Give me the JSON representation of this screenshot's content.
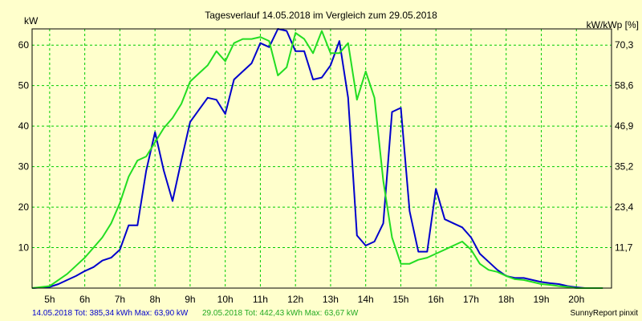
{
  "chart_data": {
    "type": "line",
    "title": "Tagesverlauf 14.05.2018 im Vergleich zum 29.05.2018",
    "ylabel_left": "kW",
    "ylabel_right": "kW/kWp [%]",
    "ylim": [
      0,
      64
    ],
    "xlim": [
      4.5,
      21.0
    ],
    "yticks_left": [
      "10",
      "20",
      "30",
      "40",
      "50",
      "60"
    ],
    "yticks_left_values": [
      10,
      20,
      30,
      40,
      50,
      60
    ],
    "yticks_right": [
      "11,7",
      "23,4",
      "35,2",
      "46,9",
      "58,6",
      "70,3"
    ],
    "xticks": [
      "5h",
      "6h",
      "7h",
      "8h",
      "9h",
      "10h",
      "11h",
      "12h",
      "13h",
      "14h",
      "15h",
      "16h",
      "17h",
      "18h",
      "19h",
      "20h"
    ],
    "xticks_values": [
      5,
      6,
      7,
      8,
      9,
      10,
      11,
      12,
      13,
      14,
      15,
      16,
      17,
      18,
      19,
      20
    ],
    "grid": true,
    "colors": {
      "background": "#ffffcc",
      "grid": "#00cc00",
      "axes": "#000000"
    },
    "series": [
      {
        "name": "14.05.2018",
        "color": "#0000cc",
        "x": [
          4.5,
          5.0,
          5.25,
          5.5,
          5.75,
          6.0,
          6.25,
          6.5,
          6.75,
          7.0,
          7.25,
          7.5,
          7.75,
          8.0,
          8.25,
          8.5,
          8.75,
          9.0,
          9.25,
          9.5,
          9.75,
          10.0,
          10.25,
          10.5,
          10.75,
          11.0,
          11.25,
          11.5,
          11.75,
          12.0,
          12.25,
          12.5,
          12.75,
          13.0,
          13.25,
          13.5,
          13.75,
          14.0,
          14.25,
          14.5,
          14.75,
          15.0,
          15.25,
          15.5,
          15.75,
          16.0,
          16.25,
          16.5,
          16.75,
          17.0,
          17.25,
          17.5,
          17.75,
          18.0,
          18.25,
          18.5,
          18.75,
          19.0,
          19.25,
          19.5,
          19.75,
          20.0,
          20.25,
          20.5,
          20.75
        ],
        "y": [
          0,
          0.3,
          1.0,
          2.0,
          3.0,
          4.2,
          5.2,
          6.8,
          7.5,
          9.5,
          15.5,
          15.5,
          29,
          38.5,
          29,
          21.5,
          31.5,
          41,
          44,
          47,
          46.5,
          43,
          51.5,
          53.5,
          55.5,
          60.5,
          59.5,
          64,
          63.5,
          58.5,
          58.5,
          51.5,
          52,
          55,
          61,
          47,
          13,
          10.5,
          11.5,
          16,
          43.5,
          44.5,
          19,
          9,
          9,
          24.5,
          17,
          16,
          15,
          12.5,
          8.5,
          6.5,
          4.5,
          3,
          2.5,
          2.5,
          2,
          1.5,
          1.2,
          1.0,
          0.5,
          0.2,
          0,
          0,
          0
        ]
      },
      {
        "name": "29.05.2018",
        "color": "#22dd22",
        "x": [
          4.5,
          5.0,
          5.25,
          5.5,
          5.75,
          6.0,
          6.25,
          6.5,
          6.75,
          7.0,
          7.25,
          7.5,
          7.75,
          8.0,
          8.25,
          8.5,
          8.75,
          9.0,
          9.25,
          9.5,
          9.75,
          10.0,
          10.25,
          10.5,
          10.75,
          11.0,
          11.25,
          11.5,
          11.75,
          12.0,
          12.25,
          12.5,
          12.75,
          13.0,
          13.25,
          13.5,
          13.75,
          14.0,
          14.25,
          14.5,
          14.75,
          15.0,
          15.25,
          15.5,
          15.75,
          16.0,
          16.25,
          16.5,
          16.75,
          17.0,
          17.25,
          17.5,
          17.75,
          18.0,
          18.25,
          18.5,
          18.75,
          19.0,
          19.25,
          19.5,
          19.75,
          20.0,
          20.25,
          20.5,
          20.75
        ],
        "y": [
          0,
          0.5,
          2.0,
          3.5,
          5.5,
          7.5,
          10,
          12.5,
          16,
          21,
          27.5,
          31.5,
          32.5,
          36,
          39.5,
          42,
          45.5,
          51,
          53,
          55,
          58.5,
          56,
          60.5,
          61.5,
          61.5,
          62,
          61,
          52.5,
          54.5,
          63,
          61.5,
          58,
          63.5,
          58,
          58,
          60.5,
          46.5,
          53.5,
          47,
          26.5,
          12.5,
          6,
          6,
          7,
          7.5,
          8.5,
          9.5,
          10.5,
          11.5,
          9.5,
          6,
          4.5,
          4,
          3,
          2.2,
          2,
          1.5,
          1,
          0.8,
          0.5,
          0.3,
          0,
          0,
          0,
          0
        ]
      }
    ],
    "footer": {
      "series1_text": "14.05.2018 Tot: 385,34 kWh Max: 63,90 kW",
      "series2_text": "29.05.2018 Tot: 442,43 kWh Max: 63,67 kW",
      "credit": "SunnyReport pinxit"
    }
  }
}
